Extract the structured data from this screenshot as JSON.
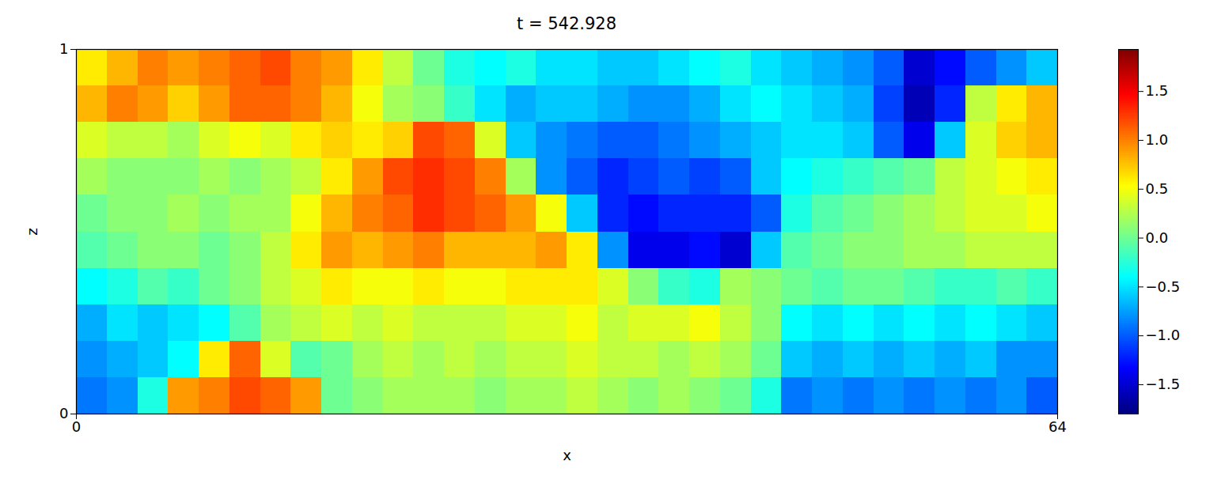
{
  "chart_data": {
    "type": "heatmap",
    "title": "t = 542.928",
    "x_label": "x",
    "y_label": "z",
    "xlim": [
      0,
      64
    ],
    "ylim": [
      0,
      1
    ],
    "xticks": [
      0,
      64
    ],
    "yticks": [
      0,
      1
    ],
    "x_edges": [
      0,
      2,
      4,
      6,
      8,
      10,
      12,
      14,
      16,
      18,
      20,
      22,
      24,
      26,
      28,
      30,
      32,
      34,
      36,
      38,
      40,
      42,
      44,
      46,
      48,
      50,
      52,
      54,
      56,
      58,
      60,
      62,
      64
    ],
    "z_edges": [
      0,
      0.1,
      0.2,
      0.3,
      0.4,
      0.5,
      0.6,
      0.7,
      0.8,
      0.9,
      1
    ],
    "values": [
      [
        -0.9,
        -0.8,
        -0.3,
        0.9,
        1.0,
        1.2,
        1.1,
        0.9,
        0.0,
        0.1,
        0.2,
        0.2,
        0.2,
        0.1,
        0.2,
        0.2,
        0.3,
        0.2,
        0.1,
        0.2,
        0.1,
        0.0,
        -0.3,
        -0.9,
        -0.8,
        -0.9,
        -0.8,
        -0.9,
        -0.8,
        -0.9,
        -0.8,
        -1.0
      ],
      [
        -0.8,
        -0.7,
        -0.6,
        -0.4,
        0.6,
        1.1,
        0.4,
        -0.1,
        0.0,
        0.2,
        0.3,
        0.2,
        0.3,
        0.2,
        0.3,
        0.3,
        0.4,
        0.3,
        0.3,
        0.2,
        0.3,
        0.2,
        0.0,
        -0.6,
        -0.7,
        -0.6,
        -0.7,
        -0.6,
        -0.7,
        -0.6,
        -0.8,
        -0.8
      ],
      [
        -0.7,
        -0.5,
        -0.6,
        -0.5,
        -0.4,
        -0.1,
        0.2,
        0.3,
        0.4,
        0.3,
        0.4,
        0.3,
        0.3,
        0.3,
        0.4,
        0.4,
        0.5,
        0.3,
        0.4,
        0.4,
        0.5,
        0.3,
        0.1,
        -0.4,
        -0.5,
        -0.4,
        -0.5,
        -0.4,
        -0.5,
        -0.4,
        -0.5,
        -0.6
      ],
      [
        -0.4,
        -0.3,
        -0.1,
        -0.2,
        0.0,
        0.1,
        0.3,
        0.4,
        0.6,
        0.5,
        0.5,
        0.6,
        0.5,
        0.5,
        0.6,
        0.6,
        0.6,
        0.4,
        0.1,
        -0.2,
        -0.3,
        0.2,
        0.1,
        0.0,
        -0.1,
        0.0,
        0.0,
        -0.1,
        -0.2,
        -0.2,
        -0.1,
        -0.2
      ],
      [
        -0.1,
        0.0,
        0.1,
        0.1,
        0.0,
        0.1,
        0.3,
        0.6,
        0.9,
        0.8,
        0.9,
        1.0,
        0.8,
        0.8,
        0.8,
        0.9,
        0.6,
        -0.8,
        -1.4,
        -1.4,
        -1.3,
        -1.5,
        -0.6,
        -0.1,
        0.0,
        0.1,
        0.1,
        0.2,
        0.2,
        0.3,
        0.3,
        0.3
      ],
      [
        0.0,
        0.1,
        0.1,
        0.2,
        0.1,
        0.2,
        0.2,
        0.5,
        0.8,
        1.0,
        1.1,
        1.3,
        1.2,
        1.1,
        0.9,
        0.5,
        -0.6,
        -1.2,
        -1.3,
        -1.2,
        -1.2,
        -1.2,
        -1.0,
        -0.3,
        -0.1,
        0.0,
        0.1,
        0.2,
        0.3,
        0.4,
        0.4,
        0.5
      ],
      [
        0.2,
        0.1,
        0.1,
        0.1,
        0.2,
        0.1,
        0.2,
        0.3,
        0.6,
        0.9,
        1.2,
        1.3,
        1.2,
        1.0,
        0.2,
        -0.8,
        -1.0,
        -1.2,
        -1.1,
        -1.0,
        -1.1,
        -1.0,
        -0.6,
        -0.4,
        -0.3,
        -0.2,
        -0.1,
        0.0,
        0.3,
        0.4,
        0.5,
        0.6
      ],
      [
        0.4,
        0.3,
        0.3,
        0.2,
        0.4,
        0.5,
        0.4,
        0.6,
        0.7,
        0.6,
        0.7,
        1.2,
        1.1,
        0.4,
        -0.6,
        -0.8,
        -0.9,
        -1.0,
        -1.0,
        -0.9,
        -0.8,
        -0.7,
        -0.6,
        -0.5,
        -0.5,
        -0.6,
        -1.0,
        -1.4,
        -0.6,
        0.4,
        0.7,
        0.8
      ],
      [
        0.8,
        1.0,
        0.9,
        0.7,
        0.9,
        1.1,
        1.1,
        1.0,
        0.8,
        0.5,
        0.2,
        0.1,
        -0.2,
        -0.5,
        -0.7,
        -0.6,
        -0.6,
        -0.7,
        -0.8,
        -0.8,
        -0.7,
        -0.5,
        -0.4,
        -0.5,
        -0.6,
        -0.7,
        -1.1,
        -1.6,
        -1.2,
        0.3,
        0.6,
        0.8
      ],
      [
        0.6,
        0.8,
        1.0,
        0.9,
        1.0,
        1.1,
        1.2,
        1.0,
        0.9,
        0.6,
        0.3,
        0.0,
        -0.3,
        -0.4,
        -0.3,
        -0.5,
        -0.5,
        -0.6,
        -0.6,
        -0.5,
        -0.4,
        -0.3,
        -0.5,
        -0.6,
        -0.7,
        -0.8,
        -1.0,
        -1.5,
        -1.3,
        -1.0,
        -0.8,
        -0.6
      ]
    ],
    "colorbar": {
      "range": [
        -1.8,
        1.93
      ],
      "ticks": [
        {
          "value": -1.5,
          "label": "−1.5"
        },
        {
          "value": -1.0,
          "label": "−1.0"
        },
        {
          "value": -0.5,
          "label": "−0.5"
        },
        {
          "value": 0.0,
          "label": "0.0"
        },
        {
          "value": 0.5,
          "label": "0.5"
        },
        {
          "value": 1.0,
          "label": "1.0"
        },
        {
          "value": 1.5,
          "label": "1.5"
        }
      ]
    }
  }
}
